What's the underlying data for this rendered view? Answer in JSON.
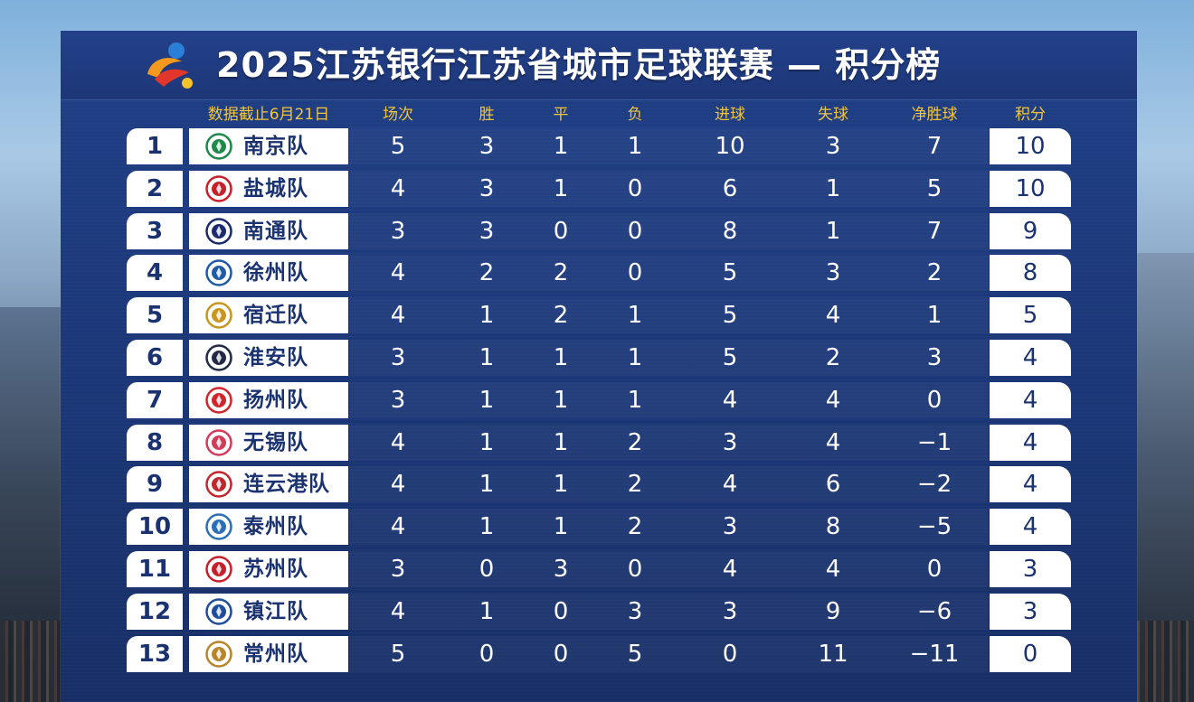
{
  "title": "2025江苏银行江苏省城市足球联赛 — 积分榜",
  "header_note": "数据截止6月21日",
  "columns": [
    "场次",
    "胜",
    "平",
    "负",
    "进球",
    "失球",
    "净胜球",
    "积分"
  ],
  "colors": {
    "board": "#1d3677",
    "accent_text": "#f2c53d",
    "team_text": "#1b3270"
  },
  "standings": [
    {
      "rank": "1",
      "team": "南京队",
      "played": "5",
      "won": "3",
      "drawn": "1",
      "lost": "1",
      "gf": "10",
      "ga": "3",
      "gd": "7",
      "pts": "10",
      "badge_color": "#1e8a4a"
    },
    {
      "rank": "2",
      "team": "盐城队",
      "played": "4",
      "won": "3",
      "drawn": "1",
      "lost": "0",
      "gf": "6",
      "ga": "1",
      "gd": "5",
      "pts": "10",
      "badge_color": "#c8202a"
    },
    {
      "rank": "3",
      "team": "南通队",
      "played": "3",
      "won": "3",
      "drawn": "0",
      "lost": "0",
      "gf": "8",
      "ga": "1",
      "gd": "7",
      "pts": "9",
      "badge_color": "#1b2b6b"
    },
    {
      "rank": "4",
      "team": "徐州队",
      "played": "4",
      "won": "2",
      "drawn": "2",
      "lost": "0",
      "gf": "5",
      "ga": "3",
      "gd": "2",
      "pts": "8",
      "badge_color": "#1f5aa8"
    },
    {
      "rank": "5",
      "team": "宿迁队",
      "played": "4",
      "won": "1",
      "drawn": "2",
      "lost": "1",
      "gf": "5",
      "ga": "4",
      "gd": "1",
      "pts": "5",
      "badge_color": "#c9961e"
    },
    {
      "rank": "6",
      "team": "淮安队",
      "played": "3",
      "won": "1",
      "drawn": "1",
      "lost": "1",
      "gf": "5",
      "ga": "2",
      "gd": "3",
      "pts": "4",
      "badge_color": "#222a44"
    },
    {
      "rank": "7",
      "team": "扬州队",
      "played": "3",
      "won": "1",
      "drawn": "1",
      "lost": "1",
      "gf": "4",
      "ga": "4",
      "gd": "0",
      "pts": "4",
      "badge_color": "#d0252b"
    },
    {
      "rank": "8",
      "team": "无锡队",
      "played": "4",
      "won": "1",
      "drawn": "1",
      "lost": "2",
      "gf": "3",
      "ga": "4",
      "gd": "−1",
      "pts": "4",
      "badge_color": "#d23b5a"
    },
    {
      "rank": "9",
      "team": "连云港队",
      "played": "4",
      "won": "1",
      "drawn": "1",
      "lost": "2",
      "gf": "4",
      "ga": "6",
      "gd": "−2",
      "pts": "4",
      "badge_color": "#c0282e"
    },
    {
      "rank": "10",
      "team": "泰州队",
      "played": "4",
      "won": "1",
      "drawn": "1",
      "lost": "2",
      "gf": "3",
      "ga": "8",
      "gd": "−5",
      "pts": "4",
      "badge_color": "#2c6fb5"
    },
    {
      "rank": "11",
      "team": "苏州队",
      "played": "3",
      "won": "0",
      "drawn": "3",
      "lost": "0",
      "gf": "4",
      "ga": "4",
      "gd": "0",
      "pts": "3",
      "badge_color": "#c8202a"
    },
    {
      "rank": "12",
      "team": "镇江队",
      "played": "4",
      "won": "1",
      "drawn": "0",
      "lost": "3",
      "gf": "3",
      "ga": "9",
      "gd": "−6",
      "pts": "3",
      "badge_color": "#1e4d9c"
    },
    {
      "rank": "13",
      "team": "常州队",
      "played": "5",
      "won": "0",
      "drawn": "0",
      "lost": "5",
      "gf": "0",
      "ga": "11",
      "gd": "−11",
      "pts": "0",
      "badge_color": "#b8862a"
    }
  ]
}
